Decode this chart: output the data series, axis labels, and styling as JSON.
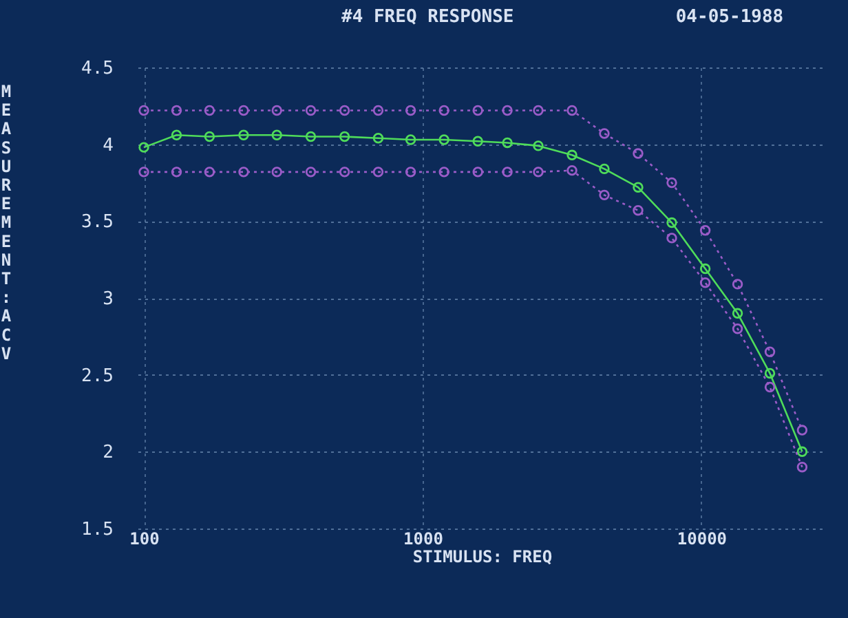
{
  "chart_data": {
    "type": "line",
    "title": "#4  FREQ RESPONSE",
    "annotations": [
      "04-05-1988"
    ],
    "xlabel": "STIMULUS: FREQ",
    "ylabel": "MEASUREMENT:  ACV",
    "x": [
      100,
      131,
      172,
      228,
      300,
      397,
      525,
      693,
      906,
      1194,
      1578,
      2014,
      2600,
      3436,
      4487,
      5929,
      7834,
      10330,
      13490,
      17620,
      23000
    ],
    "series": [
      {
        "color": "#9a5cc8",
        "line_style": "dotted",
        "values": [
          4.22,
          4.22,
          4.22,
          4.22,
          4.22,
          4.22,
          4.22,
          4.22,
          4.22,
          4.22,
          4.22,
          4.22,
          4.22,
          4.22,
          4.07,
          3.94,
          3.75,
          3.44,
          3.09,
          2.65,
          2.14
        ]
      },
      {
        "color": "#4fdc5a",
        "line_style": "solid",
        "values": [
          3.98,
          4.06,
          4.05,
          4.06,
          4.06,
          4.05,
          4.05,
          4.04,
          4.03,
          4.03,
          4.02,
          4.01,
          3.99,
          3.93,
          3.84,
          3.72,
          3.49,
          3.19,
          2.9,
          2.51,
          2.0
        ]
      },
      {
        "color": "#9a5cc8",
        "line_style": "dotted",
        "values": [
          3.82,
          3.82,
          3.82,
          3.82,
          3.82,
          3.82,
          3.82,
          3.82,
          3.82,
          3.82,
          3.82,
          3.82,
          3.82,
          3.83,
          3.67,
          3.57,
          3.39,
          3.1,
          2.8,
          2.42,
          1.9
        ]
      }
    ],
    "xlim": [
      95,
      28000
    ],
    "xticks": [
      100,
      1000,
      10000
    ],
    "ylim": [
      1.5,
      4.5
    ],
    "yticks": [
      1.5,
      2,
      2.5,
      3,
      3.5,
      4,
      4.5
    ],
    "log": "x",
    "grid": true,
    "marker": "circle"
  }
}
